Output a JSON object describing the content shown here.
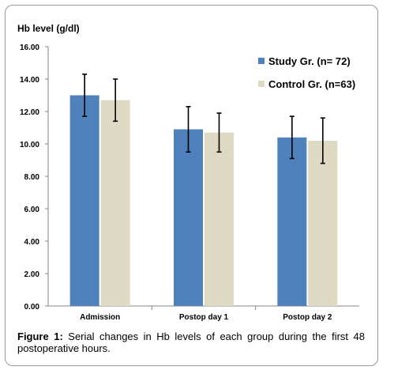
{
  "chart_data": {
    "type": "bar",
    "ylabel": "Hb level (g/dl)",
    "ylim": [
      0,
      16
    ],
    "ytick_values": [
      0,
      2,
      4,
      6,
      8,
      10,
      12,
      14,
      16
    ],
    "ytick_labels": [
      "0.00",
      "2.00",
      "4.00",
      "6.00",
      "8.00",
      "10.00",
      "12.00",
      "14.00",
      "16.00"
    ],
    "categories": [
      "Admission",
      "Postop day 1",
      "Postop day 2"
    ],
    "series": [
      {
        "name": "Study Gr. (n= 72)",
        "values": [
          13.0,
          10.9,
          10.4
        ],
        "errors": [
          1.3,
          1.4,
          1.3
        ],
        "color": "#4f81bd"
      },
      {
        "name": "Control Gr. (n=63)",
        "values": [
          12.7,
          10.7,
          10.2
        ],
        "errors": [
          1.3,
          1.2,
          1.4
        ],
        "color": "#ddd9c3"
      }
    ],
    "grid": false,
    "legend_position": "top-right"
  },
  "caption": {
    "label": "Figure 1:",
    "text": "Serial changes in Hb levels of each group during the first 48 postoperative hours."
  }
}
